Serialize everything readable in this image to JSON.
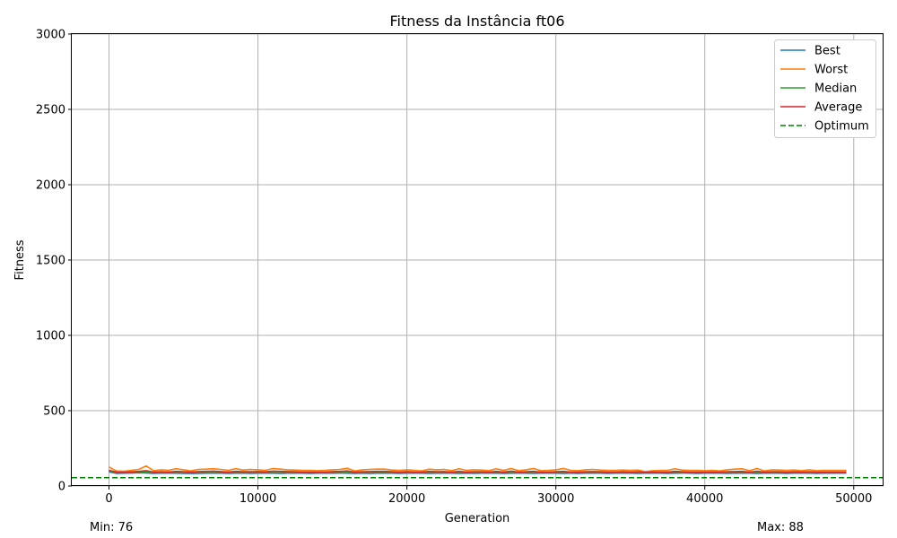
{
  "chart_data": {
    "type": "line",
    "title": "Fitness da Instância ft06",
    "xlabel": "Generation",
    "ylabel": "Fitness",
    "xlim": [
      -2500,
      52000
    ],
    "ylim": [
      0,
      3000
    ],
    "x_ticks": [
      0,
      10000,
      20000,
      30000,
      40000,
      50000
    ],
    "y_ticks": [
      0,
      500,
      1000,
      1500,
      2000,
      2500,
      3000
    ],
    "grid": true,
    "legend_position": "top-right",
    "x": [
      0,
      500,
      1000,
      1500,
      2000,
      2500,
      3000,
      3500,
      4000,
      4500,
      5000,
      5500,
      6000,
      6500,
      7000,
      7500,
      8000,
      8500,
      9000,
      9500,
      10000,
      10500,
      11000,
      11500,
      12000,
      12500,
      13000,
      13500,
      14000,
      14500,
      15000,
      15500,
      16000,
      16500,
      17000,
      17500,
      18000,
      18500,
      19000,
      19500,
      20000,
      20500,
      21000,
      21500,
      22000,
      22500,
      23000,
      23500,
      24000,
      24500,
      25000,
      25500,
      26000,
      26500,
      27000,
      27500,
      28000,
      28500,
      29000,
      29500,
      30000,
      30500,
      31000,
      31500,
      32000,
      32500,
      33000,
      33500,
      34000,
      34500,
      35000,
      35500,
      36000,
      36500,
      37000,
      37500,
      38000,
      38500,
      39000,
      39500,
      40000,
      40500,
      41000,
      41500,
      42000,
      42500,
      43000,
      43500,
      44000,
      44500,
      45000,
      45500,
      46000,
      46500,
      47000,
      47500,
      48000,
      48500,
      49000,
      49500
    ],
    "series": [
      {
        "name": "Best",
        "color": "#1f77b4",
        "style": "solid",
        "values": [
          94,
          84,
          85,
          86,
          88,
          87,
          84,
          85,
          86,
          85,
          84,
          83,
          84,
          85,
          86,
          85,
          84,
          85,
          86,
          84,
          85,
          86,
          85,
          84,
          85,
          86,
          85,
          84,
          85,
          86,
          85,
          86,
          85,
          84,
          85,
          84,
          85,
          86,
          85,
          84,
          85,
          86,
          85,
          84,
          85,
          86,
          85,
          84,
          85,
          84,
          85,
          86,
          85,
          84,
          85,
          86,
          85,
          84,
          85,
          86,
          85,
          84,
          85,
          84,
          85,
          86,
          85,
          84,
          85,
          86,
          85,
          84,
          85,
          86,
          85,
          84,
          85,
          86,
          85,
          84,
          85,
          86,
          85,
          84,
          85,
          86,
          85,
          84,
          85,
          86,
          85,
          84,
          85,
          86,
          85,
          84,
          85,
          86,
          85,
          86
        ]
      },
      {
        "name": "Worst",
        "color": "#ff7f0e",
        "style": "solid",
        "values": [
          126,
          100,
          98,
          104,
          110,
          133,
          102,
          108,
          104,
          115,
          108,
          100,
          110,
          112,
          115,
          110,
          104,
          115,
          106,
          110,
          108,
          104,
          116,
          112,
          108,
          106,
          104,
          104,
          102,
          104,
          108,
          110,
          118,
          100,
          108,
          110,
          112,
          112,
          106,
          104,
          108,
          104,
          100,
          112,
          108,
          110,
          102,
          114,
          104,
          108,
          106,
          102,
          114,
          104,
          116,
          102,
          108,
          116,
          102,
          104,
          108,
          116,
          104,
          102,
          108,
          110,
          106,
          104,
          104,
          106,
          104,
          106,
          96,
          102,
          104,
          104,
          114,
          106,
          104,
          104,
          102,
          104,
          100,
          108,
          112,
          114,
          102,
          116,
          100,
          108,
          106,
          104,
          106,
          102,
          108,
          102,
          104,
          104,
          104,
          104
        ]
      },
      {
        "name": "Median",
        "color": "#2ca02c",
        "style": "solid",
        "values": [
          100,
          90,
          89,
          92,
          94,
          96,
          90,
          92,
          91,
          94,
          92,
          90,
          93,
          94,
          96,
          93,
          91,
          94,
          92,
          92,
          93,
          91,
          95,
          94,
          93,
          92,
          91,
          91,
          90,
          91,
          93,
          94,
          96,
          90,
          92,
          93,
          94,
          94,
          92,
          91,
          93,
          91,
          90,
          94,
          92,
          93,
          90,
          94,
          91,
          92,
          92,
          90,
          94,
          91,
          95,
          90,
          92,
          94,
          90,
          91,
          92,
          94,
          91,
          90,
          92,
          93,
          92,
          91,
          91,
          92,
          91,
          92,
          88,
          91,
          91,
          91,
          94,
          92,
          91,
          91,
          90,
          91,
          90,
          92,
          93,
          94,
          90,
          94,
          90,
          92,
          92,
          91,
          92,
          90,
          92,
          90,
          91,
          91,
          91,
          91
        ]
      },
      {
        "name": "Average",
        "color": "#d62728",
        "style": "solid",
        "values": [
          104,
          92,
          91,
          94,
          97,
          102,
          92,
          95,
          93,
          97,
          95,
          92,
          96,
          97,
          99,
          96,
          93,
          97,
          95,
          95,
          96,
          94,
          99,
          97,
          96,
          95,
          93,
          93,
          92,
          93,
          96,
          97,
          100,
          92,
          95,
          96,
          97,
          97,
          95,
          93,
          96,
          93,
          92,
          97,
          95,
          96,
          92,
          97,
          93,
          95,
          95,
          92,
          97,
          93,
          99,
          92,
          95,
          97,
          92,
          93,
          95,
          97,
          93,
          92,
          95,
          96,
          95,
          93,
          93,
          95,
          93,
          95,
          90,
          93,
          93,
          93,
          97,
          95,
          93,
          93,
          92,
          93,
          92,
          95,
          96,
          97,
          92,
          98,
          92,
          95,
          95,
          93,
          95,
          92,
          95,
          92,
          93,
          93,
          93,
          93
        ]
      },
      {
        "name": "Optimum",
        "color": "#008000",
        "style": "dashed",
        "constant": 55
      }
    ]
  },
  "stats": {
    "min_text": "Min: 76",
    "max_text": "Max: 88"
  }
}
